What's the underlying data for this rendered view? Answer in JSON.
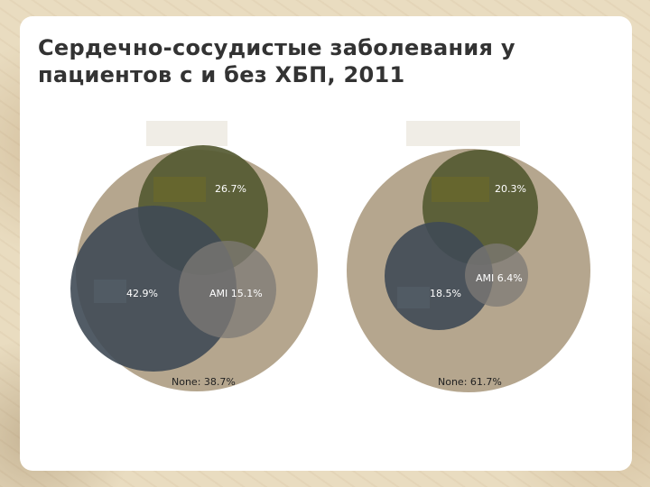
{
  "title": {
    "line1": "Сердечно-сосудистые заболевания у",
    "line2": "пациентов с и без ХБП, 2011"
  },
  "colors": {
    "outer": "#b5a68e",
    "upper": "#555a32",
    "left": "#3f4a55",
    "ami": "#7d7a76",
    "placeholder": "#f0ede6"
  },
  "diagrams": [
    {
      "upper_label": "26.7%",
      "left_label": "42.9%",
      "ami_label": "AMI 15.1%",
      "none_label": "None: 38.7%"
    },
    {
      "upper_label": "20.3%",
      "left_label": "18.5%",
      "ami_label": "AMI 6.4%",
      "none_label": "None: 61.7%"
    }
  ]
}
